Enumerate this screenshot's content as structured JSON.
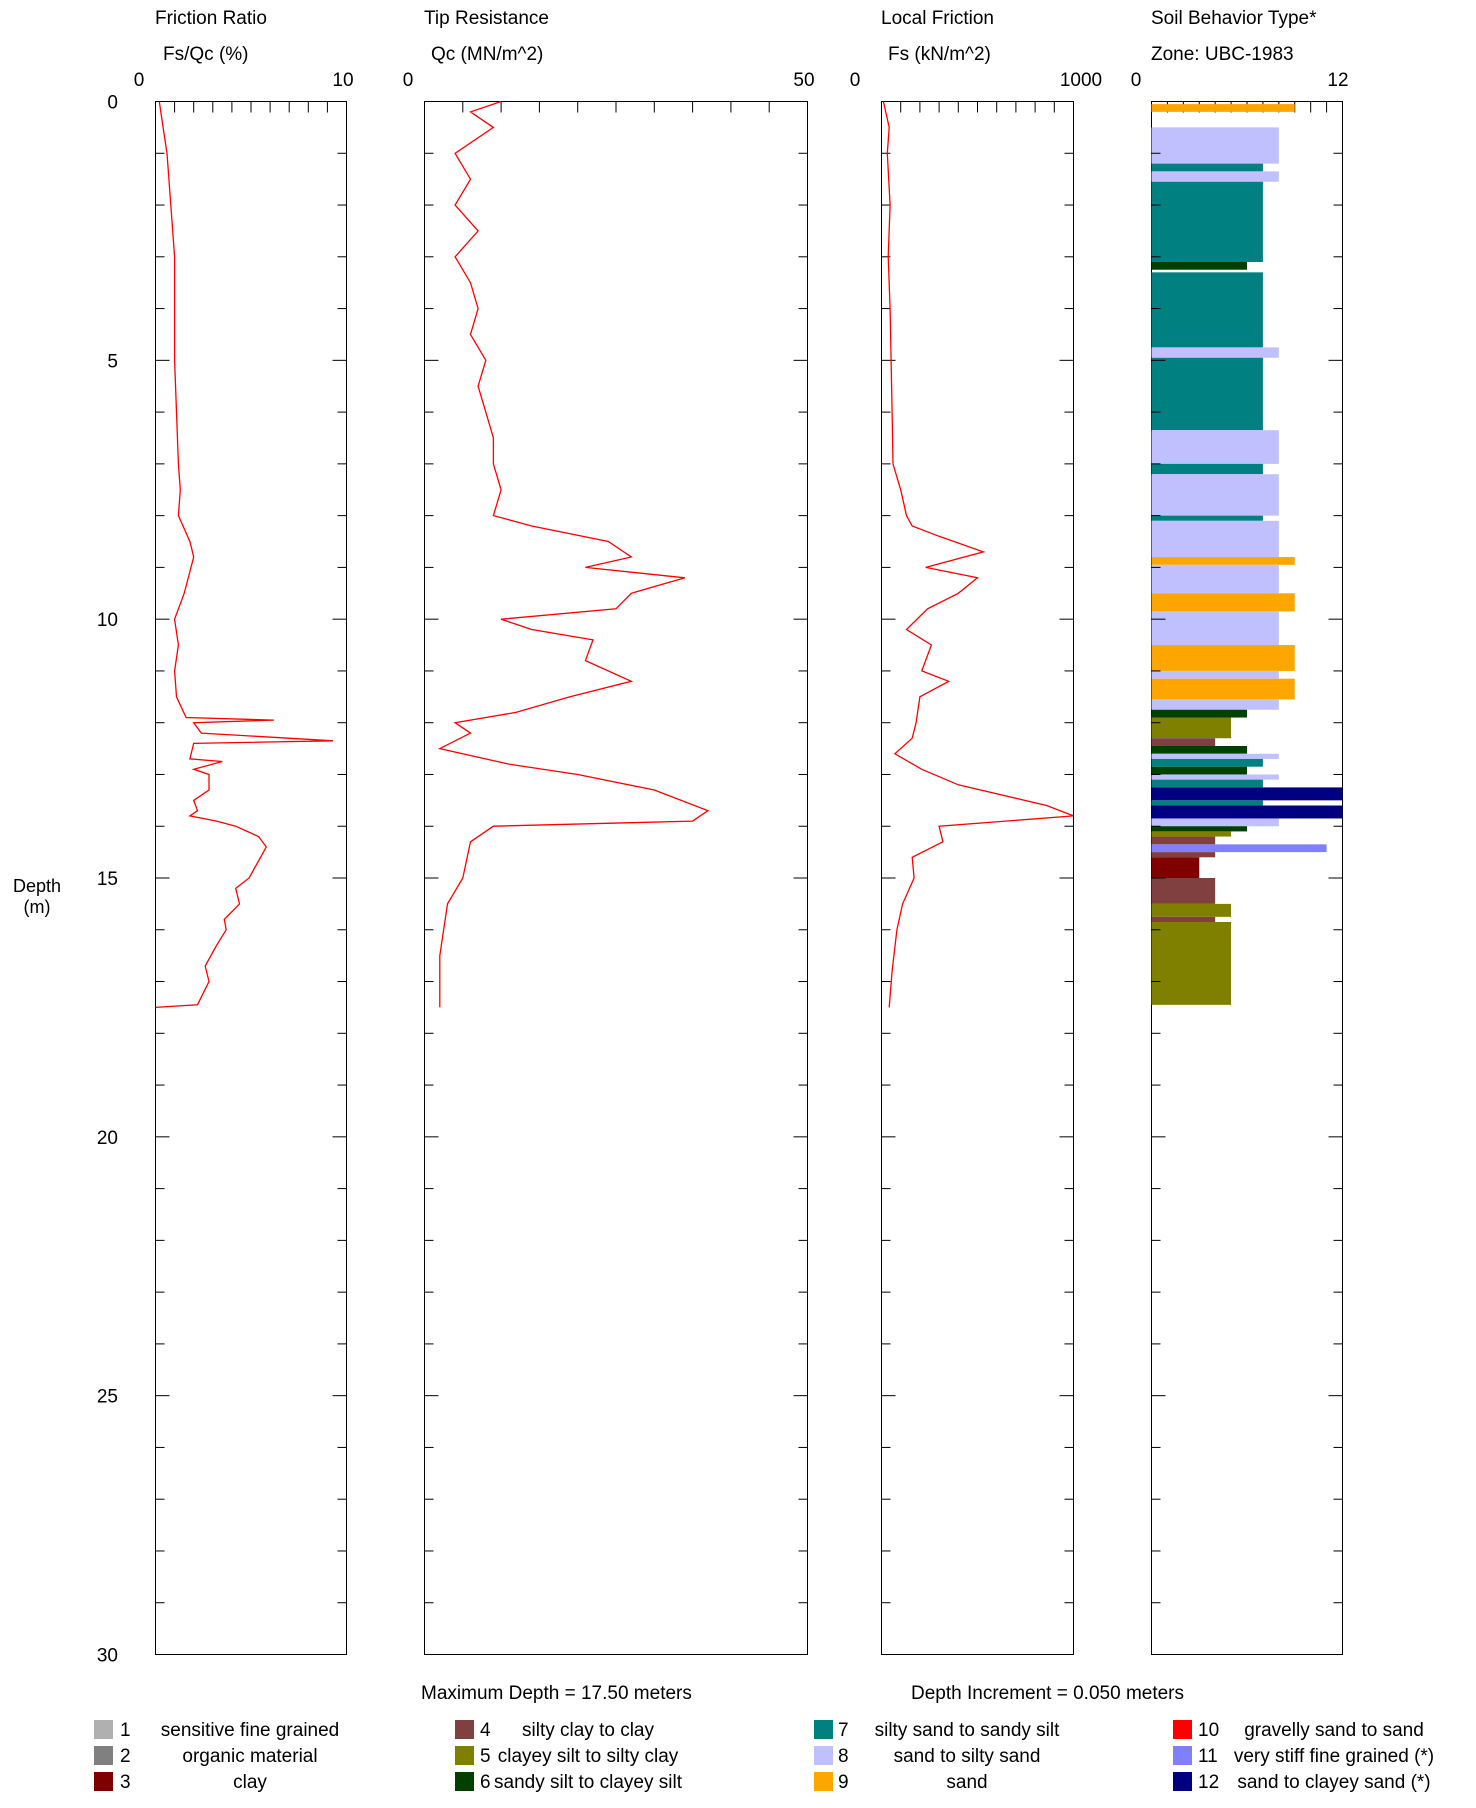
{
  "depth_axis": {
    "label_line1": "Depth",
    "label_line2": "(m)",
    "ticks": [
      "0",
      "5",
      "10",
      "15",
      "20",
      "25",
      "30"
    ]
  },
  "panels": {
    "friction_ratio": {
      "title": "Friction Ratio",
      "unit": "Fs/Qc (%)",
      "min_label": "0",
      "max_label": "10"
    },
    "tip_resistance": {
      "title": "Tip Resistance",
      "unit": "Qc (MN/m^2)",
      "min_label": "0",
      "max_label": "50"
    },
    "local_friction": {
      "title": "Local Friction",
      "unit": "Fs (kN/m^2)",
      "min_label": "0",
      "max_label": "1000"
    },
    "sbt": {
      "title": "Soil Behavior Type*",
      "unit": "Zone: UBC-1983",
      "min_label": "0",
      "max_label": "12"
    }
  },
  "footer": {
    "max_depth": "Maximum Depth = 17.50 meters",
    "depth_increment": "Depth Increment = 0.050 meters"
  },
  "legend": [
    {
      "num": "1",
      "label": "sensitive fine grained",
      "color": "#b0b0b0"
    },
    {
      "num": "2",
      "label": "organic material",
      "color": "#808080"
    },
    {
      "num": "3",
      "label": "clay",
      "color": "#800000"
    },
    {
      "num": "4",
      "label": "silty clay to clay",
      "color": "#804040"
    },
    {
      "num": "5",
      "label": "clayey silt to silty clay",
      "color": "#808000"
    },
    {
      "num": "6",
      "label": "sandy silt to clayey silt",
      "color": "#004000"
    },
    {
      "num": "7",
      "label": "silty sand to sandy silt",
      "color": "#008080"
    },
    {
      "num": "8",
      "label": "sand to silty sand",
      "color": "#c0c0ff"
    },
    {
      "num": "9",
      "label": "sand",
      "color": "#ffa500"
    },
    {
      "num": "10",
      "label": "gravelly sand to sand",
      "color": "#ff0000"
    },
    {
      "num": "11",
      "label": "very stiff fine grained (*)",
      "color": "#8080ff"
    },
    {
      "num": "12",
      "label": "sand to clayey sand (*)",
      "color": "#000080"
    }
  ],
  "chart_data": [
    {
      "type": "line",
      "name": "friction_ratio",
      "title": "Friction Ratio",
      "xlabel": "Fs/Qc (%)",
      "ylabel": "Depth (m)",
      "xlim": [
        0,
        10
      ],
      "ylim": [
        0,
        30
      ],
      "y_inverted": true,
      "points": [
        [
          0.2,
          0
        ],
        [
          0.4,
          0.5
        ],
        [
          0.6,
          1
        ],
        [
          0.8,
          2
        ],
        [
          1,
          3
        ],
        [
          1,
          4
        ],
        [
          1,
          5
        ],
        [
          1.1,
          6
        ],
        [
          1.2,
          7
        ],
        [
          1.3,
          7.5
        ],
        [
          1.2,
          8
        ],
        [
          1.8,
          8.5
        ],
        [
          2,
          8.8
        ],
        [
          1.5,
          9.5
        ],
        [
          1,
          10
        ],
        [
          1.2,
          10.5
        ],
        [
          1,
          11
        ],
        [
          1.1,
          11.5
        ],
        [
          1.6,
          11.9
        ],
        [
          6.2,
          11.95
        ],
        [
          2,
          12
        ],
        [
          2.4,
          12.2
        ],
        [
          9.3,
          12.35
        ],
        [
          2,
          12.4
        ],
        [
          1.8,
          12.7
        ],
        [
          3.5,
          12.75
        ],
        [
          2,
          12.9
        ],
        [
          2.8,
          13
        ],
        [
          2.8,
          13.3
        ],
        [
          2,
          13.5
        ],
        [
          2.2,
          13.7
        ],
        [
          1.8,
          13.8
        ],
        [
          3.2,
          13.9
        ],
        [
          4.2,
          14
        ],
        [
          4.8,
          14.1
        ],
        [
          5.4,
          14.2
        ],
        [
          5.8,
          14.4
        ],
        [
          5.5,
          14.6
        ],
        [
          5.2,
          14.8
        ],
        [
          4.9,
          15
        ],
        [
          4.2,
          15.2
        ],
        [
          4.4,
          15.5
        ],
        [
          3.6,
          15.8
        ],
        [
          3.7,
          16
        ],
        [
          3.2,
          16.3
        ],
        [
          2.6,
          16.7
        ],
        [
          2.8,
          17
        ],
        [
          2.4,
          17.3
        ],
        [
          2.2,
          17.45
        ],
        [
          0,
          17.5
        ]
      ]
    },
    {
      "type": "line",
      "name": "tip_resistance",
      "title": "Tip Resistance",
      "xlabel": "Qc (MN/m^2)",
      "ylabel": "Depth (m)",
      "xlim": [
        0,
        50
      ],
      "ylim": [
        0,
        30
      ],
      "y_inverted": true,
      "points": [
        [
          10,
          0
        ],
        [
          6,
          0.2
        ],
        [
          9,
          0.5
        ],
        [
          4,
          1
        ],
        [
          6,
          1.5
        ],
        [
          4,
          2
        ],
        [
          7,
          2.5
        ],
        [
          4,
          3
        ],
        [
          6,
          3.5
        ],
        [
          7,
          4
        ],
        [
          6,
          4.5
        ],
        [
          8,
          5
        ],
        [
          7,
          5.5
        ],
        [
          8,
          6
        ],
        [
          9,
          6.5
        ],
        [
          9,
          7
        ],
        [
          10,
          7.5
        ],
        [
          9,
          8
        ],
        [
          14,
          8.2
        ],
        [
          24,
          8.5
        ],
        [
          27,
          8.8
        ],
        [
          21,
          9
        ],
        [
          34,
          9.2
        ],
        [
          27,
          9.5
        ],
        [
          25,
          9.8
        ],
        [
          10,
          10
        ],
        [
          14,
          10.2
        ],
        [
          22,
          10.4
        ],
        [
          21,
          10.8
        ],
        [
          27,
          11.2
        ],
        [
          19,
          11.5
        ],
        [
          12,
          11.8
        ],
        [
          4,
          12
        ],
        [
          6,
          12.2
        ],
        [
          2,
          12.5
        ],
        [
          11,
          12.8
        ],
        [
          20,
          13
        ],
        [
          30,
          13.3
        ],
        [
          37,
          13.7
        ],
        [
          35,
          13.9
        ],
        [
          9,
          14
        ],
        [
          6,
          14.3
        ],
        [
          5,
          15
        ],
        [
          3,
          15.5
        ],
        [
          2,
          16.5
        ],
        [
          2,
          17.5
        ]
      ]
    },
    {
      "type": "line",
      "name": "local_friction",
      "title": "Local Friction",
      "xlabel": "Fs (kN/m^2)",
      "ylabel": "Depth (m)",
      "xlim": [
        0,
        1000
      ],
      "ylim": [
        0,
        30
      ],
      "y_inverted": true,
      "points": [
        [
          10,
          0
        ],
        [
          40,
          0.5
        ],
        [
          30,
          1
        ],
        [
          45,
          2
        ],
        [
          35,
          3
        ],
        [
          45,
          4
        ],
        [
          50,
          5
        ],
        [
          55,
          6
        ],
        [
          60,
          7
        ],
        [
          100,
          7.5
        ],
        [
          130,
          8
        ],
        [
          160,
          8.2
        ],
        [
          300,
          8.4
        ],
        [
          530,
          8.7
        ],
        [
          230,
          9
        ],
        [
          500,
          9.2
        ],
        [
          400,
          9.5
        ],
        [
          240,
          9.8
        ],
        [
          130,
          10.2
        ],
        [
          260,
          10.5
        ],
        [
          210,
          11
        ],
        [
          350,
          11.2
        ],
        [
          200,
          11.5
        ],
        [
          180,
          12
        ],
        [
          160,
          12.3
        ],
        [
          70,
          12.6
        ],
        [
          210,
          12.9
        ],
        [
          400,
          13.2
        ],
        [
          860,
          13.6
        ],
        [
          1000,
          13.8
        ],
        [
          300,
          14
        ],
        [
          320,
          14.3
        ],
        [
          160,
          14.6
        ],
        [
          170,
          15
        ],
        [
          110,
          15.5
        ],
        [
          80,
          16
        ],
        [
          55,
          16.8
        ],
        [
          40,
          17.5
        ]
      ]
    },
    {
      "type": "bar",
      "name": "soil_behavior_type",
      "title": "Soil Behavior Type*",
      "xlabel": "Zone: UBC-1983",
      "ylabel": "Depth (m)",
      "xlim": [
        0,
        12
      ],
      "ylim": [
        0,
        30
      ],
      "y_inverted": true,
      "layers": [
        {
          "top": 0.05,
          "bottom": 0.2,
          "zone": 9
        },
        {
          "top": 0.5,
          "bottom": 1.2,
          "zone": 8
        },
        {
          "top": 1.2,
          "bottom": 1.35,
          "zone": 7
        },
        {
          "top": 1.35,
          "bottom": 1.55,
          "zone": 8
        },
        {
          "top": 1.55,
          "bottom": 3.1,
          "zone": 7
        },
        {
          "top": 3.1,
          "bottom": 3.25,
          "zone": 6
        },
        {
          "top": 3.3,
          "bottom": 4.75,
          "zone": 7
        },
        {
          "top": 4.75,
          "bottom": 4.95,
          "zone": 8
        },
        {
          "top": 4.95,
          "bottom": 6.35,
          "zone": 7
        },
        {
          "top": 6.35,
          "bottom": 7.0,
          "zone": 8
        },
        {
          "top": 7.0,
          "bottom": 7.2,
          "zone": 7
        },
        {
          "top": 7.2,
          "bottom": 8.0,
          "zone": 8
        },
        {
          "top": 8.0,
          "bottom": 8.1,
          "zone": 7
        },
        {
          "top": 8.1,
          "bottom": 8.8,
          "zone": 8
        },
        {
          "top": 8.8,
          "bottom": 8.95,
          "zone": 9
        },
        {
          "top": 8.95,
          "bottom": 9.5,
          "zone": 8
        },
        {
          "top": 9.5,
          "bottom": 9.85,
          "zone": 9
        },
        {
          "top": 9.85,
          "bottom": 10.5,
          "zone": 8
        },
        {
          "top": 10.5,
          "bottom": 11.0,
          "zone": 9
        },
        {
          "top": 11.0,
          "bottom": 11.15,
          "zone": 8
        },
        {
          "top": 11.15,
          "bottom": 11.55,
          "zone": 9
        },
        {
          "top": 11.55,
          "bottom": 11.75,
          "zone": 8
        },
        {
          "top": 11.75,
          "bottom": 11.9,
          "zone": 6
        },
        {
          "top": 11.9,
          "bottom": 12.3,
          "zone": 5
        },
        {
          "top": 12.3,
          "bottom": 12.45,
          "zone": 4
        },
        {
          "top": 12.45,
          "bottom": 12.6,
          "zone": 6
        },
        {
          "top": 12.6,
          "bottom": 12.7,
          "zone": 8
        },
        {
          "top": 12.7,
          "bottom": 12.85,
          "zone": 7
        },
        {
          "top": 12.85,
          "bottom": 13.0,
          "zone": 6
        },
        {
          "top": 13.0,
          "bottom": 13.1,
          "zone": 8
        },
        {
          "top": 13.1,
          "bottom": 13.25,
          "zone": 7
        },
        {
          "top": 13.25,
          "bottom": 13.5,
          "zone": 12
        },
        {
          "top": 13.5,
          "bottom": 13.6,
          "zone": 7
        },
        {
          "top": 13.6,
          "bottom": 13.85,
          "zone": 12
        },
        {
          "top": 13.85,
          "bottom": 14.0,
          "zone": 8
        },
        {
          "top": 14.0,
          "bottom": 14.1,
          "zone": 6
        },
        {
          "top": 14.1,
          "bottom": 14.2,
          "zone": 5
        },
        {
          "top": 14.2,
          "bottom": 14.35,
          "zone": 4
        },
        {
          "top": 14.35,
          "bottom": 14.5,
          "zone": 11
        },
        {
          "top": 14.5,
          "bottom": 14.6,
          "zone": 4
        },
        {
          "top": 14.6,
          "bottom": 15.0,
          "zone": 3
        },
        {
          "top": 15.0,
          "bottom": 15.5,
          "zone": 4
        },
        {
          "top": 15.5,
          "bottom": 15.75,
          "zone": 5
        },
        {
          "top": 15.75,
          "bottom": 15.85,
          "zone": 4
        },
        {
          "top": 15.85,
          "bottom": 17.45,
          "zone": 5
        }
      ]
    }
  ]
}
